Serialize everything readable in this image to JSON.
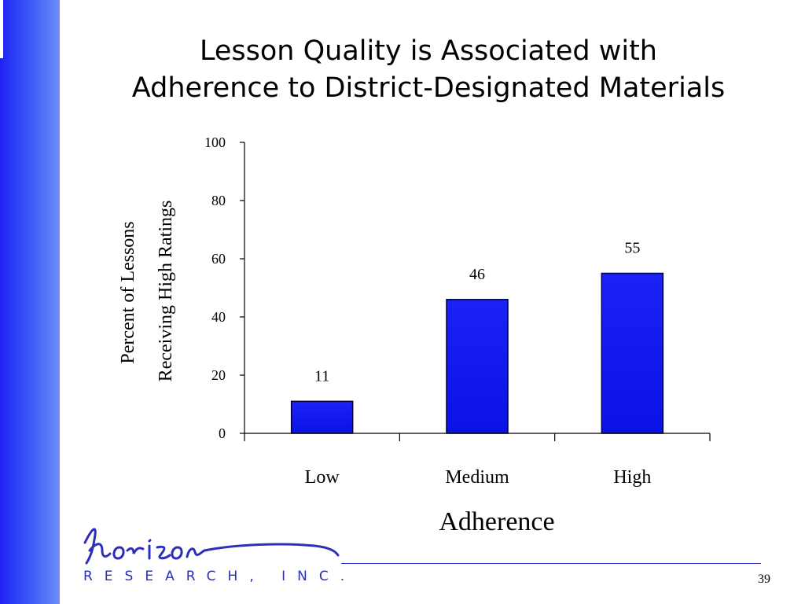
{
  "slide": {
    "title_line1": "Lesson Quality is Associated with",
    "title_line2": "Adherence to District-Designated Materials",
    "logo_text": "horizon",
    "logo_subtext": "RESEARCH, INC.",
    "page_number": "39"
  },
  "colors": {
    "sidebar": "#1f23f2",
    "bar_fill": "#0a12e6",
    "bar_stroke": "#00003a",
    "logo": "#2c2fb8"
  },
  "chart_data": {
    "type": "bar",
    "categories": [
      "Low",
      "Medium",
      "High"
    ],
    "values": [
      11,
      46,
      55
    ],
    "data_labels": [
      "11",
      "46",
      "55"
    ],
    "title": "",
    "xlabel": "Adherence",
    "ylabel_line1": "Percent of Lessons",
    "ylabel_line2": "Receiving High Ratings",
    "ylim": [
      0,
      100
    ],
    "yticks": [
      0,
      20,
      40,
      60,
      80,
      100
    ],
    "grid": false,
    "legend": "none"
  }
}
